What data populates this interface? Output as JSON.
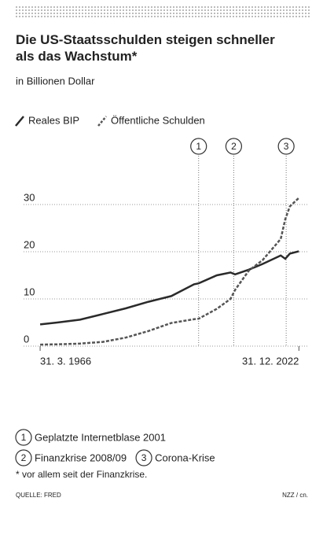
{
  "chart_data": {
    "type": "line",
    "title": "Die US-Staatsschulden steigen schneller als das Wachstum*",
    "subtitle": "in Billionen Dollar",
    "x": [
      1966.25,
      1970,
      1975,
      1980,
      1985,
      1990,
      1995,
      2000,
      2001,
      2005,
      2008,
      2009,
      2012,
      2015,
      2019,
      2020,
      2021,
      2022.99
    ],
    "series": [
      {
        "name": "Reales BIP",
        "color": "#2a2a2a",
        "dash": false,
        "values": [
          4.6,
          5.0,
          5.6,
          6.8,
          8.0,
          9.4,
          10.6,
          13.1,
          13.3,
          15.0,
          15.6,
          15.2,
          16.2,
          17.4,
          19.2,
          18.5,
          19.6,
          20.1
        ]
      },
      {
        "name": "Öffentliche Schulden",
        "color": "#555555",
        "dash": true,
        "values": [
          0.32,
          0.38,
          0.54,
          0.9,
          1.8,
          3.2,
          4.9,
          5.7,
          5.8,
          7.9,
          10.0,
          11.9,
          16.0,
          18.2,
          22.7,
          26.9,
          29.6,
          31.4
        ]
      }
    ],
    "xlim": [
      1964,
      2025
    ],
    "xticks": [
      {
        "value": 1966.25,
        "label": "31. 3. 1966"
      },
      {
        "value": 2022.99,
        "label": "31. 12. 2022"
      }
    ],
    "ylim": [
      0,
      35
    ],
    "yticks": [
      0,
      10,
      20,
      30
    ],
    "grid": true,
    "annotations": [
      {
        "number": "1",
        "x": 2001,
        "text": "Geplatzte Internetblase 2001"
      },
      {
        "number": "2",
        "x": 2008.7,
        "text": "Finanzkrise 2008/09"
      },
      {
        "number": "3",
        "x": 2020.2,
        "text": "Corona-Krise"
      }
    ],
    "footnote": "* vor allem seit der Finanzkrise.",
    "source": "QUELLE: FRED",
    "credit": "NZZ / cn."
  }
}
